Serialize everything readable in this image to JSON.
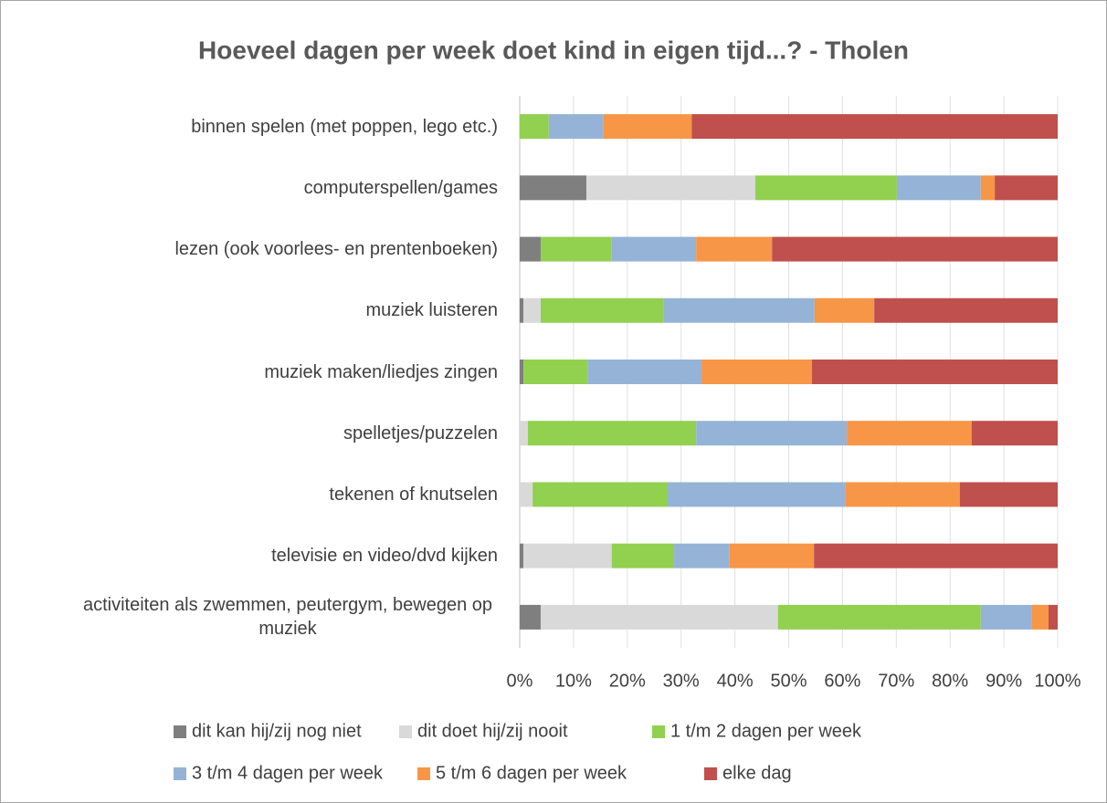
{
  "chart_data": {
    "type": "stacked_barh",
    "title": "Hoeveel dagen per week doet kind in eigen tijd...? - Tholen",
    "categories": [
      "binnen spelen (met poppen, lego etc.)",
      "computerspellen/games",
      "lezen (ook voorlees- en prentenboeken)",
      "muziek luisteren",
      "muziek maken/liedjes zingen",
      "spelletjes/puzzelen",
      "tekenen of knutselen",
      "televisie en video/dvd kijken",
      "activiteiten als zwemmen, peutergym, bewegen op muziek"
    ],
    "series": [
      {
        "name": "dit kan hij/zij nog niet",
        "color": "#7f7f7f",
        "values": [
          0,
          12.4,
          3.9,
          0.7,
          0.7,
          0,
          0,
          0.7,
          3.9
        ]
      },
      {
        "name": "dit doet hij/zij nooit",
        "color": "#d9d9d9",
        "values": [
          0,
          31.4,
          0,
          3.2,
          0,
          1.5,
          2.4,
          16.4,
          44.1
        ]
      },
      {
        "name": "1 t/m 2 dagen per week",
        "color": "#92d050",
        "values": [
          5.4,
          26.3,
          13.2,
          22.9,
          11.9,
          31.3,
          25.1,
          11.6,
          37.7
        ]
      },
      {
        "name": "3 t/m 4 dagen per week",
        "color": "#95b3d7",
        "values": [
          10.2,
          15.6,
          15.7,
          28.0,
          21.2,
          28.0,
          33.1,
          10.3,
          9.4
        ]
      },
      {
        "name": "5 t/m 6 dagen per week",
        "color": "#f79646",
        "values": [
          16.4,
          2.6,
          14.1,
          11.1,
          20.5,
          23.2,
          21.2,
          15.7,
          3.2
        ]
      },
      {
        "name": "elke dag",
        "color": "#c0504d",
        "values": [
          68.0,
          11.7,
          53.1,
          34.1,
          45.7,
          16.0,
          18.2,
          45.3,
          1.7
        ]
      }
    ],
    "xlim": [
      0,
      100
    ],
    "xticks": [
      {
        "value": 0,
        "label": "0%"
      },
      {
        "value": 10,
        "label": "10%"
      },
      {
        "value": 20,
        "label": "20%"
      },
      {
        "value": 30,
        "label": "30%"
      },
      {
        "value": 40,
        "label": "40%"
      },
      {
        "value": 50,
        "label": "50%"
      },
      {
        "value": 60,
        "label": "60%"
      },
      {
        "value": 70,
        "label": "70%"
      },
      {
        "value": 80,
        "label": "80%"
      },
      {
        "value": 90,
        "label": "90%"
      },
      {
        "value": 100,
        "label": "100%"
      }
    ],
    "grid": true,
    "legend": "bottom"
  }
}
